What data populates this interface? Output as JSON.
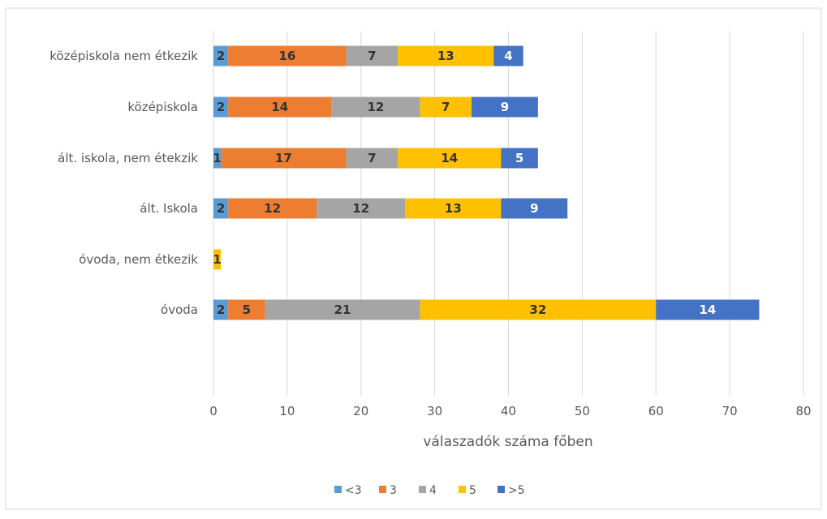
{
  "chart_data": {
    "type": "bar",
    "orientation": "horizontal",
    "stacked": true,
    "title": "",
    "xlabel": "válaszadók száma főben",
    "ylabel": "",
    "xlim": [
      0,
      80
    ],
    "x_ticks": [
      0,
      10,
      20,
      30,
      40,
      50,
      60,
      70,
      80
    ],
    "grid": "vertical",
    "legend_position": "bottom",
    "categories": [
      "középiskola nem étkezik",
      "középiskola",
      "ált. iskola, nem étekzik",
      "ált.  Iskola",
      "óvoda, nem étkezik",
      "óvoda"
    ],
    "series": [
      {
        "name": "<3",
        "color": "#5b9bd5",
        "label_color": "#333333",
        "values": [
          2,
          2,
          1,
          2,
          0,
          2
        ]
      },
      {
        "name": "3",
        "color": "#ed7d31",
        "label_color": "#333333",
        "values": [
          16,
          14,
          17,
          12,
          0,
          5
        ]
      },
      {
        "name": "4",
        "color": "#a5a5a5",
        "label_color": "#333333",
        "values": [
          7,
          12,
          7,
          12,
          0,
          21
        ]
      },
      {
        "name": "5",
        "color": "#ffc000",
        "label_color": "#333333",
        "values": [
          13,
          7,
          14,
          13,
          1,
          32
        ]
      },
      {
        "name": ">5",
        "color": "#4472c4",
        "label_color": "#ffffff",
        "values": [
          4,
          9,
          5,
          9,
          0,
          14
        ]
      }
    ]
  }
}
